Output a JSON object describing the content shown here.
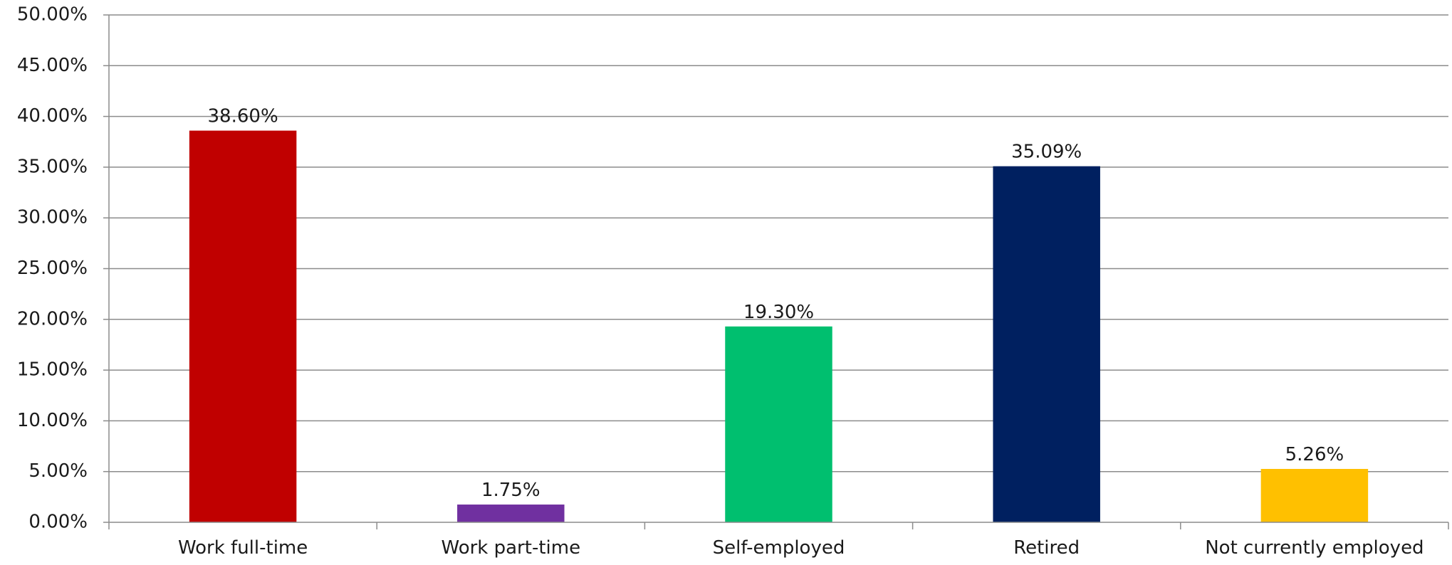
{
  "chart_data": {
    "type": "bar",
    "title": "",
    "xlabel": "",
    "ylabel": "",
    "categories": [
      "Work full-time",
      "Work part-time",
      "Self-employed",
      "Retired",
      "Not currently employed"
    ],
    "values": [
      38.6,
      1.75,
      19.3,
      35.09,
      5.26
    ],
    "data_labels": [
      "38.60%",
      "1.75%",
      "19.30%",
      "35.09%",
      "5.26%"
    ],
    "colors": [
      "#c00000",
      "#7030a0",
      "#00bf6f",
      "#002060",
      "#ffc000"
    ],
    "ylim": [
      0,
      50
    ],
    "yticks": [
      0,
      5,
      10,
      15,
      20,
      25,
      30,
      35,
      40,
      45,
      50
    ],
    "ytick_labels": [
      "0.00%",
      "5.00%",
      "10.00%",
      "15.00%",
      "20.00%",
      "25.00%",
      "30.00%",
      "35.00%",
      "40.00%",
      "45.00%",
      "50.00%"
    ],
    "grid": true,
    "legend": "none"
  }
}
